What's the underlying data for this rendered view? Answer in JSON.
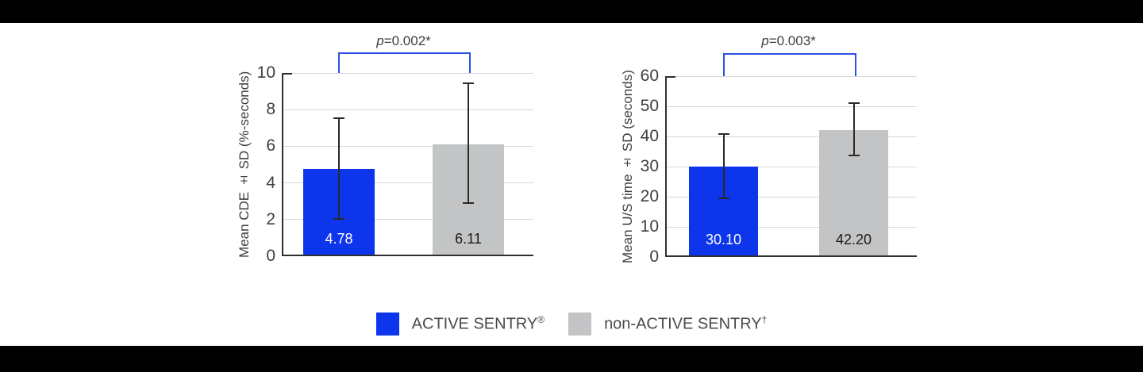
{
  "page": {
    "background": "#ffffff",
    "letterbox_color": "#000000"
  },
  "colors": {
    "active_sentry_blue": "#0c35ec",
    "non_active_sentry_gray": "#c3c4c5",
    "bracket_blue": "#2b4fe0",
    "gridline": "#d8d8d8",
    "axis": "#2f2f2f",
    "error_bar": "#2a2a2a",
    "text": "#3f3f3f"
  },
  "legend": {
    "items": [
      {
        "label": "ACTIVE SENTRY",
        "sup": "®",
        "color": "#0c35ec"
      },
      {
        "label": "non-ACTIVE SENTRY",
        "sup": "†",
        "color": "#c3c4c5"
      }
    ]
  },
  "chart_data": [
    {
      "type": "bar",
      "title": "",
      "ylabel": "Mean CDE ± SD (%-seconds)",
      "ylim": [
        0,
        10
      ],
      "yticks": [
        0,
        2,
        4,
        6,
        8,
        10
      ],
      "grid": true,
      "categories": [
        "ACTIVE SENTRY®",
        "non-ACTIVE SENTRY†"
      ],
      "values": [
        4.78,
        6.11
      ],
      "value_labels": [
        "4.78",
        "6.11"
      ],
      "error_low": [
        1.98,
        2.84
      ],
      "error_high": [
        7.58,
        9.46
      ],
      "bar_colors": [
        "#0c35ec",
        "#c3c4c5"
      ],
      "value_label_colors": [
        "#ffffff",
        "#1a1a1a"
      ],
      "significance": "p=0.002*",
      "p_label": {
        "italic": "p",
        "text": "=0.002*"
      }
    },
    {
      "type": "bar",
      "title": "",
      "ylabel": "Mean U/S time ± SD (seconds)",
      "ylim": [
        0,
        60
      ],
      "yticks": [
        0,
        10,
        20,
        30,
        40,
        50,
        60
      ],
      "grid": true,
      "categories": [
        "ACTIVE SENTRY®",
        "non-ACTIVE SENTRY†"
      ],
      "values": [
        30.1,
        42.2
      ],
      "value_labels": [
        "30.10",
        "42.20"
      ],
      "error_low": [
        19.2,
        33.4
      ],
      "error_high": [
        41.0,
        51.3
      ],
      "bar_colors": [
        "#0c35ec",
        "#c3c4c5"
      ],
      "value_label_colors": [
        "#ffffff",
        "#1a1a1a"
      ],
      "significance": "p=0.003*",
      "p_label": {
        "italic": "p",
        "text": "=0.003*"
      }
    }
  ]
}
